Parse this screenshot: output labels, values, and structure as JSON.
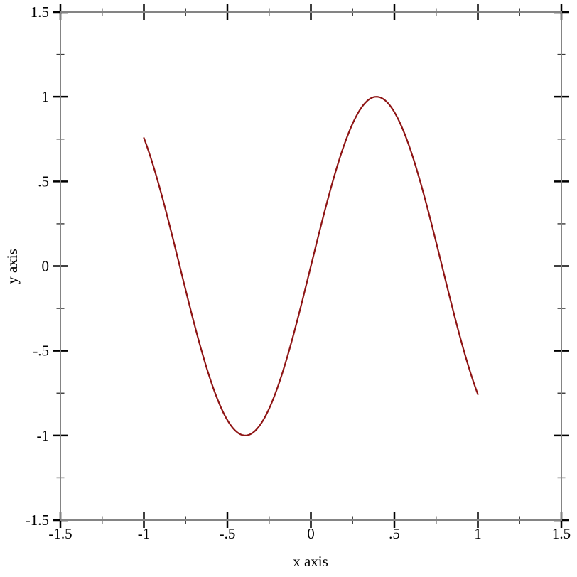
{
  "page": {
    "background": "#ffffff"
  },
  "chart_data": {
    "type": "line",
    "title": "",
    "xlabel": "x axis",
    "ylabel": "y axis",
    "xlim": [
      -1.5,
      1.5
    ],
    "ylim": [
      -1.5,
      1.5
    ],
    "grid": false,
    "legend": "none",
    "function": "y = sin(4x)",
    "function_params": {
      "amplitude": 1,
      "omega": 4,
      "x_min": -1,
      "x_max": 1,
      "samples": 240
    },
    "points": [
      [
        -1.0,
        0.757
      ],
      [
        -0.9,
        0.443
      ],
      [
        -0.8,
        0.058
      ],
      [
        -0.7,
        -0.335
      ],
      [
        -0.6,
        -0.675
      ],
      [
        -0.5,
        -0.909
      ],
      [
        -0.4,
        -1.0
      ],
      [
        -0.3,
        -0.932
      ],
      [
        -0.2,
        -0.717
      ],
      [
        -0.1,
        -0.389
      ],
      [
        0.0,
        0.0
      ],
      [
        0.1,
        0.389
      ],
      [
        0.2,
        0.717
      ],
      [
        0.3,
        0.932
      ],
      [
        0.4,
        1.0
      ],
      [
        0.5,
        0.909
      ],
      [
        0.6,
        0.675
      ],
      [
        0.7,
        0.335
      ],
      [
        0.8,
        -0.058
      ],
      [
        0.9,
        -0.443
      ],
      [
        1.0,
        -0.757
      ]
    ],
    "line_color": "#8e1414",
    "frame_color": "#848484",
    "major_tick_color": "#000000",
    "minor_tick_color": "#3a3a3a",
    "x_ticks": {
      "major": [
        {
          "v": -1.5,
          "label": "-1.5"
        },
        {
          "v": -1.0,
          "label": "-1"
        },
        {
          "v": -0.5,
          "label": "-.5"
        },
        {
          "v": 0.0,
          "label": "0"
        },
        {
          "v": 0.5,
          "label": ".5"
        },
        {
          "v": 1.0,
          "label": "1"
        },
        {
          "v": 1.5,
          "label": "1.5"
        }
      ],
      "minor": [
        -1.25,
        -0.75,
        -0.25,
        0.25,
        0.75,
        1.25
      ]
    },
    "y_ticks": {
      "major": [
        {
          "v": -1.5,
          "label": "-1.5"
        },
        {
          "v": -1.0,
          "label": "-1"
        },
        {
          "v": -0.5,
          "label": "-.5"
        },
        {
          "v": 0.0,
          "label": "0"
        },
        {
          "v": 0.5,
          "label": ".5"
        },
        {
          "v": 1.0,
          "label": "1"
        },
        {
          "v": 1.5,
          "label": "1.5"
        }
      ],
      "minor": [
        -1.25,
        -0.75,
        -0.25,
        0.25,
        0.75,
        1.25
      ]
    }
  }
}
